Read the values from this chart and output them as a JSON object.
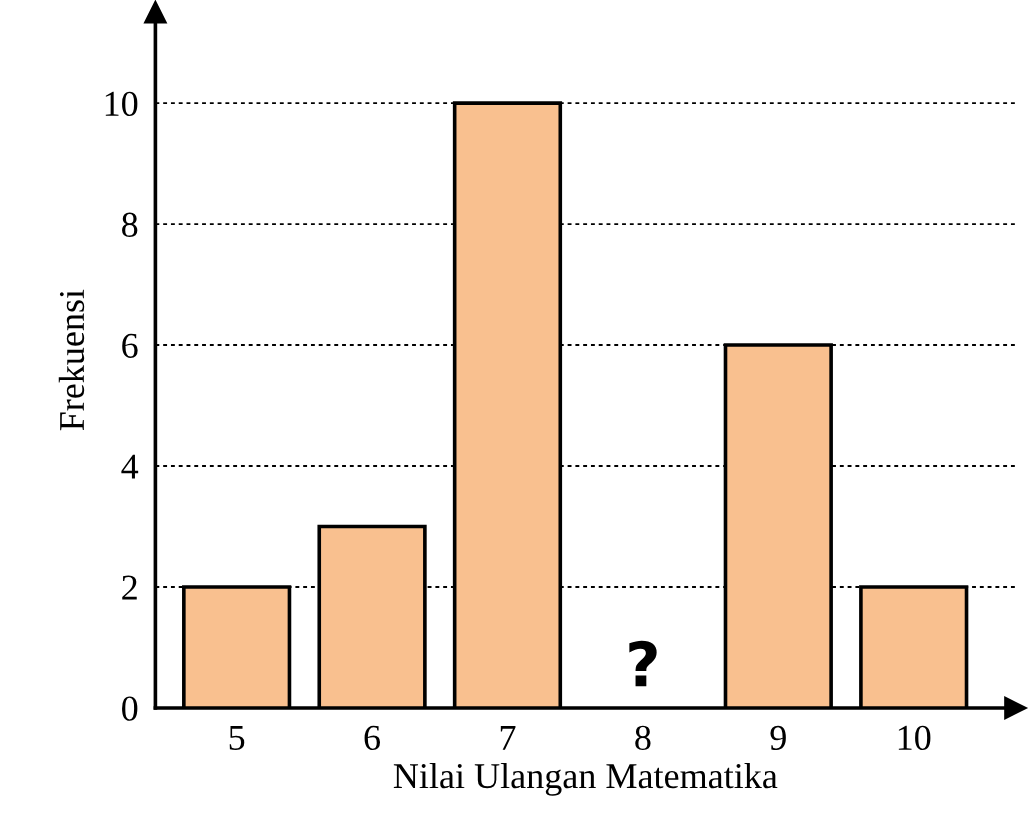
{
  "chart_data": {
    "type": "bar",
    "xlabel": "Nilai Ulangan Matematika",
    "ylabel": "Frekuensi",
    "categories": [
      "5",
      "6",
      "7",
      "8",
      "9",
      "10"
    ],
    "values": [
      2,
      3,
      10,
      null,
      6,
      2
    ],
    "color": "#f9c08f",
    "ylim": [
      0,
      11.5
    ],
    "yticks": [
      0,
      2,
      4,
      6,
      8,
      10
    ],
    "grid": "y",
    "annotations": [
      "?"
    ]
  }
}
